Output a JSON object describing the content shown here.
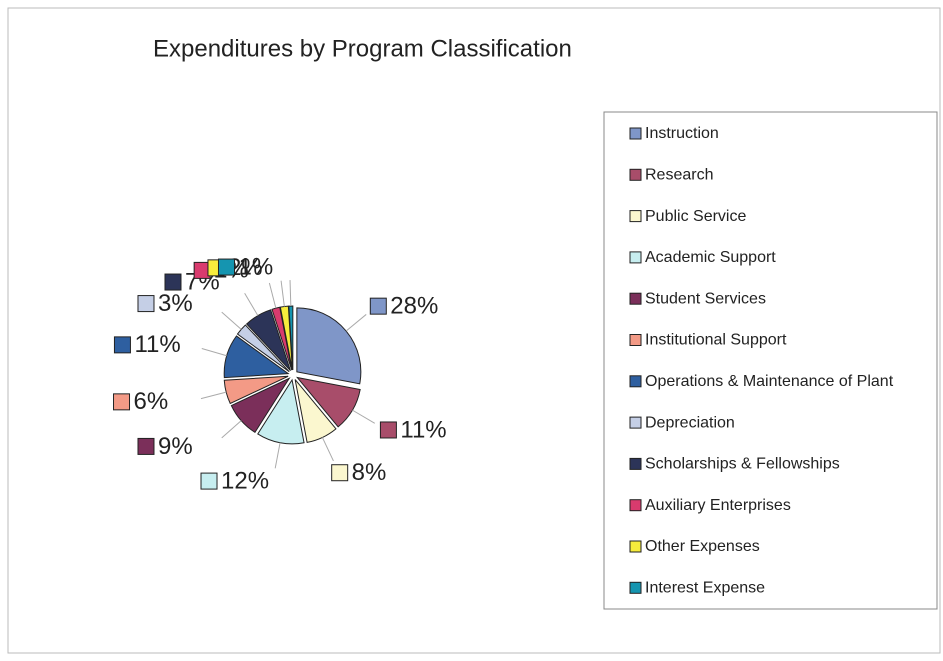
{
  "chart_data": {
    "type": "pie",
    "title": "Expenditures by Program Classification",
    "categories": [
      "Instruction",
      "Research",
      "Public Service",
      "Academic Support",
      "Student Services",
      "Institutional  Support",
      "Operations & Maintenance of Plant",
      "Depreciation",
      "Scholarships  & Fellowships",
      "Auxiliary Enterprises",
      "Other Expenses",
      "Interest Expense"
    ],
    "values": [
      28,
      11,
      8,
      12,
      9,
      6,
      11,
      3,
      7,
      2,
      2,
      1
    ],
    "value_labels": [
      "28%",
      "11%",
      "8%",
      "12%",
      "9%",
      "6%",
      "11%",
      "3%",
      "7%",
      "2%",
      "2%",
      "1%"
    ],
    "colors": [
      "#7f96c8",
      "#a84d6a",
      "#fbf7cf",
      "#c7eef0",
      "#7b2f5a",
      "#f39a86",
      "#2e5fa0",
      "#c5cfe6",
      "#2c3458",
      "#d93b6e",
      "#f7ec3c",
      "#1595b0"
    ],
    "legend": "right"
  }
}
